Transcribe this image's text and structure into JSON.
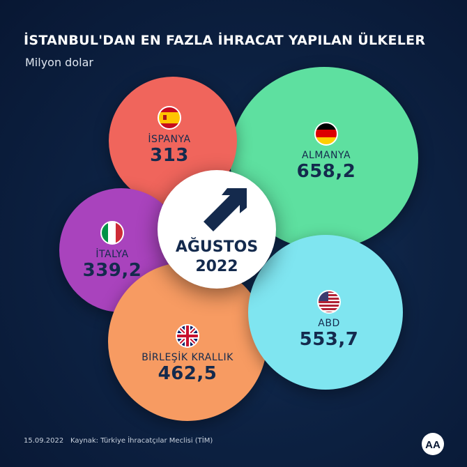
{
  "title": "İSTANBUL'DAN EN FAZLA İHRACAT YAPILAN ÜLKELER",
  "subtitle": "Milyon dolar",
  "center": {
    "line1": "AĞUSTOS",
    "line2": "2022"
  },
  "footer": {
    "date": "15.09.2022",
    "source": "Kaynak: Türkiye İhracatçılar Meclisi (TİM)"
  },
  "logo_text": "AA",
  "colors": {
    "ispanya": "#f0655c",
    "almanya": "#5ee0a0",
    "italya": "#a943bd",
    "abd": "#7fe5f0",
    "birlesik_krallik": "#f79b62",
    "text_dark": "#142a4d"
  },
  "chart_data": {
    "type": "bubble",
    "title": "İSTANBUL'DAN EN FAZLA İHRACAT YAPILAN ÜLKELER",
    "subtitle": "Milyon dolar",
    "unit": "Milyon dolar",
    "period": "AĞUSTOS 2022",
    "categories": [
      "İSPANYA",
      "ALMANYA",
      "İTALYA",
      "ABD",
      "BİRLEŞİK KRALLIK"
    ],
    "values": [
      313,
      658.2,
      339.2,
      553.7,
      462.5
    ],
    "value_labels": [
      "313",
      "658,2",
      "339,2",
      "553,7",
      "462,5"
    ],
    "flags": [
      "spain-flag-icon",
      "germany-flag-icon",
      "italy-flag-icon",
      "usa-flag-icon",
      "uk-flag-icon"
    ]
  }
}
